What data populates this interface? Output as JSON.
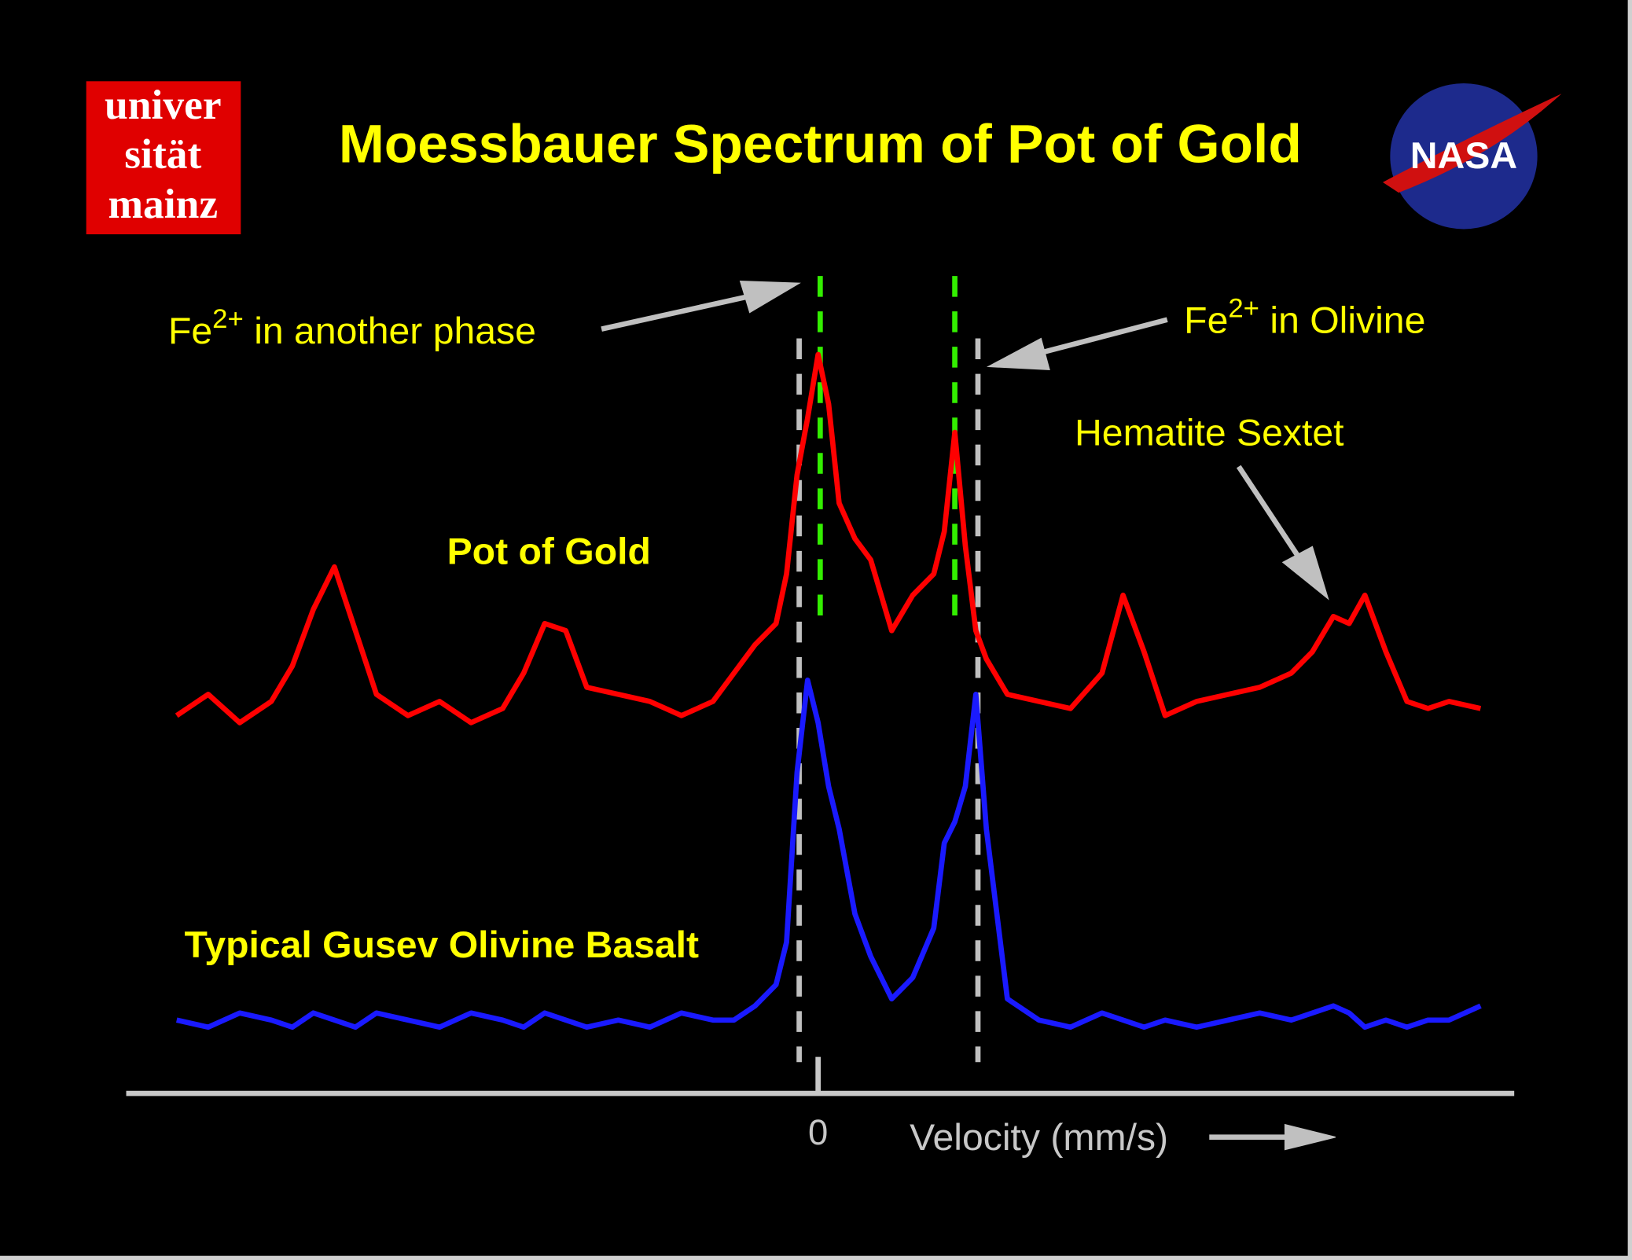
{
  "chart_data": {
    "type": "line",
    "title": "Moessbauer Spectrum of Pot of Gold",
    "x_label": "Velocity  (mm/s)",
    "xlim": [
      -6.18,
      6.32
    ],
    "xticks": [
      0
    ],
    "ylim": [
      0,
      100
    ],
    "x": [
      -6.1,
      -5.8,
      -5.5,
      -5.2,
      -5.0,
      -4.8,
      -4.6,
      -4.4,
      -4.2,
      -3.9,
      -3.6,
      -3.3,
      -3.0,
      -2.8,
      -2.6,
      -2.4,
      -2.2,
      -1.9,
      -1.6,
      -1.3,
      -1.0,
      -0.8,
      -0.6,
      -0.4,
      -0.3,
      -0.2,
      -0.1,
      0,
      0.1,
      0.2,
      0.35,
      0.5,
      0.7,
      0.9,
      1.1,
      1.2,
      1.3,
      1.4,
      1.5,
      1.6,
      1.8,
      2.1,
      2.4,
      2.7,
      2.9,
      3.1,
      3.3,
      3.6,
      3.9,
      4.2,
      4.5,
      4.7,
      4.9,
      5.05,
      5.2,
      5.4,
      5.6,
      5.8,
      6.0,
      6.3
    ],
    "series": [
      {
        "name": "Pot of Gold",
        "color": "#ff0000",
        "values": [
          46,
          49,
          45,
          48,
          53,
          61,
          67,
          58,
          49,
          46,
          48,
          45,
          47,
          52,
          59,
          58,
          50,
          49,
          48,
          46,
          48,
          52,
          56,
          59,
          66,
          80,
          88,
          97,
          90,
          76,
          71,
          68,
          58,
          63,
          66,
          72,
          86,
          70,
          58,
          54,
          49,
          48,
          47,
          52,
          63,
          55,
          46,
          48,
          49,
          50,
          52,
          55,
          60,
          59,
          63,
          55,
          48,
          47,
          48,
          47
        ]
      },
      {
        "name": "Typical Gusev Olivine Basalt",
        "color": "#1a1aff",
        "values": [
          3,
          2,
          4,
          3,
          2,
          4,
          3,
          2,
          4,
          3,
          2,
          4,
          3,
          2,
          4,
          3,
          2,
          3,
          2,
          4,
          3,
          3,
          5,
          8,
          14,
          38,
          51,
          45,
          36,
          30,
          18,
          12,
          6,
          9,
          16,
          28,
          31,
          36,
          49,
          30,
          6,
          3,
          2,
          4,
          3,
          2,
          3,
          2,
          3,
          4,
          3,
          4,
          5,
          4,
          2,
          3,
          2,
          3,
          3,
          5
        ]
      }
    ],
    "reference_lines": [
      {
        "x": -0.18,
        "color": "#c0c0c0"
      },
      {
        "x": 1.52,
        "color": "#c0c0c0"
      },
      {
        "x": 0.02,
        "color": "#33ee00"
      },
      {
        "x": 1.3,
        "color": "#33ee00"
      }
    ],
    "annotations": [
      {
        "text": "Fe",
        "sup": "2+",
        "rest": " in another phase"
      },
      {
        "text": "Fe",
        "sup": "2+",
        "rest": " in Olivine"
      },
      {
        "text": "Hematite Sextet"
      }
    ]
  },
  "logos": {
    "mainz": [
      "univer",
      "sität",
      "mainz"
    ],
    "nasa": "NASA"
  }
}
